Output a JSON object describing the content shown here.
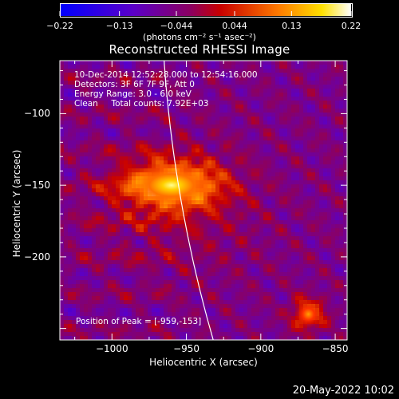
{
  "chart_data": {
    "type": "heatmap",
    "title": "Reconstructed RHESSI Image",
    "xlabel": "Heliocentric X (arcsec)",
    "ylabel": "Heliocentric Y (arcsec)",
    "xlim": [
      -1035,
      -842
    ],
    "ylim": [
      -258,
      -63
    ],
    "xticks": [
      -1000,
      -950,
      -900,
      -850
    ],
    "yticks": [
      -100,
      -150,
      -200
    ],
    "colorbar": {
      "range": [
        -0.22,
        0.22
      ],
      "tick_values": [
        -0.22,
        -0.13,
        -0.044,
        0.044,
        0.13,
        0.22
      ],
      "tick_labels": [
        "-0.22",
        "-0.13",
        "-0.044",
        "0.044",
        "0.13",
        "0.22"
      ],
      "units_label": "(photons cm⁻² s⁻¹ asec⁻²)"
    },
    "annotations": [
      "10-Dec-2014 12:52:28.000 to 12:54:16.000",
      "Detectors: 3F 6F 7F 9F, Att 0",
      "Energy Range: 3.0 - 6.0 keV",
      "Clean     Total counts: 7.92E+03"
    ],
    "peak": {
      "x": -959,
      "y": -153,
      "label": "Position of Peak = [-959,-153]"
    },
    "sources": [
      {
        "x": -960,
        "y": -150,
        "value": 0.22
      },
      {
        "x": -868,
        "y": -240,
        "value": 0.15
      }
    ],
    "limb_color": "#ffffff",
    "colormap": "blue-purple-red-yellow-white"
  },
  "footer": {
    "date": "20-May-2022 10:02"
  }
}
